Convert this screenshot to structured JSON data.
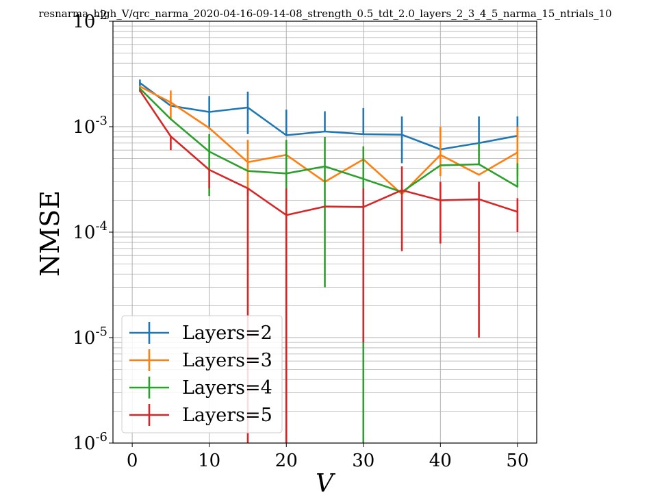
{
  "chart_data": {
    "type": "line",
    "title": "resnarma_high_V/qrc_narma_2020-04-16-09-14-08_strength_0.5_tdt_2.0_layers_2_3_4_5_narma_15_ntrials_10",
    "xlabel": "V",
    "ylabel": "NMSE",
    "xlim": [
      -2.5,
      52.5
    ],
    "ylim": [
      1e-06,
      0.01
    ],
    "yscale": "log",
    "grid": "both-major-and-minor-y",
    "legend_position": "lower-left",
    "x_ticks": [
      0,
      10,
      20,
      30,
      40,
      50
    ],
    "y_ticks": [
      {
        "value": 1e-06,
        "base": "10",
        "exp": "-6"
      },
      {
        "value": 1e-05,
        "base": "10",
        "exp": "-5"
      },
      {
        "value": 0.0001,
        "base": "10",
        "exp": "-4"
      },
      {
        "value": 0.001,
        "base": "10",
        "exp": "-3"
      },
      {
        "value": 0.01,
        "base": "10",
        "exp": "-2"
      }
    ],
    "x": [
      1,
      5,
      10,
      15,
      20,
      25,
      30,
      35,
      40,
      45,
      50
    ],
    "series": [
      {
        "name": "Layers=2",
        "color": "#1f77b4",
        "values": [
          0.0026,
          0.00158,
          0.00138,
          0.00152,
          0.00083,
          0.0009,
          0.00085,
          0.00084,
          0.00061,
          0.0007,
          0.00082
        ],
        "err_low": [
          0.00215,
          0.00158,
          0.00095,
          0.00085,
          0.00083,
          0.0009,
          0.00085,
          0.00045,
          0.00061,
          0.0007,
          0.00082
        ],
        "err_high": [
          0.0028,
          0.00158,
          0.00195,
          0.00215,
          0.00145,
          0.0014,
          0.0015,
          0.00125,
          0.00061,
          0.00125,
          0.00125
        ]
      },
      {
        "name": "Layers=3",
        "color": "#ff7f0e",
        "values": [
          0.0024,
          0.0017,
          0.00097,
          0.00046,
          0.00054,
          0.0003,
          0.00049,
          0.00023,
          0.00054,
          0.00035,
          0.00057
        ],
        "err_low": [
          0.0024,
          0.0012,
          0.00097,
          0.00022,
          0.00054,
          0.0003,
          0.00049,
          0.00023,
          0.00034,
          0.00035,
          0.00034
        ],
        "err_high": [
          0.0024,
          0.0022,
          0.00097,
          0.00075,
          0.00054,
          0.0003,
          0.00049,
          0.00023,
          0.001,
          0.00035,
          0.001
        ]
      },
      {
        "name": "Layers=4",
        "color": "#2ca02c",
        "values": [
          0.0023,
          0.00118,
          0.00058,
          0.00038,
          0.00036,
          0.00042,
          0.00032,
          0.00024,
          0.00043,
          0.00044,
          0.00027
        ],
        "err_low": [
          0.0023,
          0.00118,
          0.00022,
          0.00038,
          1e-06,
          3e-05,
          1e-06,
          0.00024,
          0.00043,
          0.00044,
          0.00027
        ],
        "err_high": [
          0.0023,
          0.00118,
          0.00085,
          0.00038,
          0.00075,
          0.0008,
          0.00065,
          0.00024,
          0.00043,
          0.0007,
          0.00045
        ]
      },
      {
        "name": "Layers=5",
        "color": "#d62728",
        "values": [
          0.0022,
          0.00081,
          0.00039,
          0.00026,
          0.000145,
          0.000175,
          0.000173,
          0.00025,
          0.0002,
          0.000205,
          0.000156
        ],
        "err_low": [
          0.0022,
          0.0006,
          0.00026,
          1e-06,
          1e-06,
          0.000175,
          9e-06,
          6.6e-05,
          7.8e-05,
          1e-05,
          0.0001
        ],
        "err_high": [
          0.0022,
          0.00081,
          0.00039,
          0.00026,
          0.00026,
          0.000175,
          0.00026,
          0.00042,
          0.0003,
          0.0003,
          0.00021
        ]
      }
    ]
  }
}
